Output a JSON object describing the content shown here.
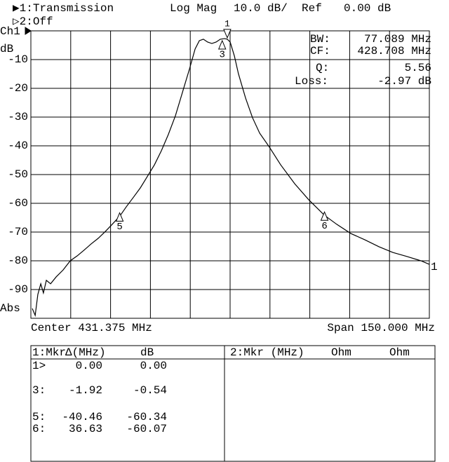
{
  "header": {
    "channel1": "▶1:Transmission",
    "format": "Log Mag",
    "scale": "10.0 dB/",
    "ref_label": "Ref",
    "ref_value": "0.00 dB",
    "channel2": "▷2:Off"
  },
  "chart_data": {
    "type": "line",
    "channel_label": "Ch1",
    "unit_label": "dB",
    "mode_label": "Abs",
    "center_label": "Center 431.375 MHz",
    "span_label": "Span 150.000 MHz",
    "trace_label": "1",
    "color": "#000000",
    "grid": true,
    "xlim": [
      356.375,
      506.375
    ],
    "ylim": [
      -100,
      0
    ],
    "yticks": [
      -10,
      -20,
      -30,
      -40,
      -50,
      -60,
      -70,
      -80,
      -90
    ],
    "x": [
      356.9,
      358.0,
      359.0,
      360.1,
      361.1,
      362.2,
      363.8,
      365.9,
      368.5,
      371.2,
      373.8,
      376.4,
      379.1,
      381.7,
      384.4,
      387.0,
      389.9,
      392.3,
      394.9,
      397.6,
      400.2,
      402.9,
      405.5,
      408.1,
      410.8,
      413.4,
      416.1,
      418.2,
      419.8,
      421.3,
      422.9,
      424.5,
      426.1,
      427.7,
      429.3,
      430.3,
      431.4,
      433.0,
      434.5,
      437.2,
      439.8,
      442.5,
      446.2,
      450.4,
      455.7,
      461.0,
      466.8,
      471.5,
      476.8,
      482.1,
      487.4,
      492.6,
      497.9,
      503.2,
      506.3
    ],
    "values": [
      -96.6,
      -99,
      -91.7,
      -88,
      -91.2,
      -86.8,
      -88,
      -85.6,
      -83.2,
      -80,
      -78.3,
      -76.3,
      -74.1,
      -72.2,
      -69.8,
      -67.3,
      -64.4,
      -61.2,
      -58,
      -54.6,
      -50.7,
      -46.6,
      -41.7,
      -36.1,
      -29.5,
      -21.5,
      -13.2,
      -6.3,
      -3.4,
      -2.9,
      -3.9,
      -4.4,
      -3.9,
      -2.9,
      -2.7,
      -2.9,
      -3.9,
      -8.8,
      -14.9,
      -23.4,
      -30.2,
      -35.6,
      -40.5,
      -46.6,
      -53.2,
      -58.8,
      -64.1,
      -67.3,
      -70.5,
      -72.7,
      -75.1,
      -77.1,
      -78.5,
      -80,
      -81.2
    ],
    "markers": [
      {
        "label": "1",
        "x": 430.3,
        "y": -2.9
      },
      {
        "label": "3",
        "x": 428.4,
        "y": -3.4
      },
      {
        "label": "5",
        "x": 389.8,
        "y": -63.3
      },
      {
        "label": "6",
        "x": 466.9,
        "y": -63.0
      }
    ],
    "stats": [
      {
        "label": "BW:",
        "value": "77.089 MHz"
      },
      {
        "label": "CF:",
        "value": "428.708 MHz"
      },
      {
        "label": "Q:",
        "value": "5.56"
      },
      {
        "label": "Loss:",
        "value": "-2.97 dB"
      }
    ]
  },
  "marker_table": {
    "left_header": [
      "1:Mkr",
      "Δ(MHz)",
      "dB"
    ],
    "right_header": [
      "2:Mkr (MHz)",
      "Ohm",
      "Ohm"
    ],
    "rows": [
      [
        "1>",
        "0.00",
        "0.00"
      ],
      [
        "3:",
        "-1.92",
        "-0.54"
      ],
      [
        "5:",
        "-40.46",
        "-60.34"
      ],
      [
        "6:",
        "36.63",
        "-60.07"
      ]
    ]
  }
}
